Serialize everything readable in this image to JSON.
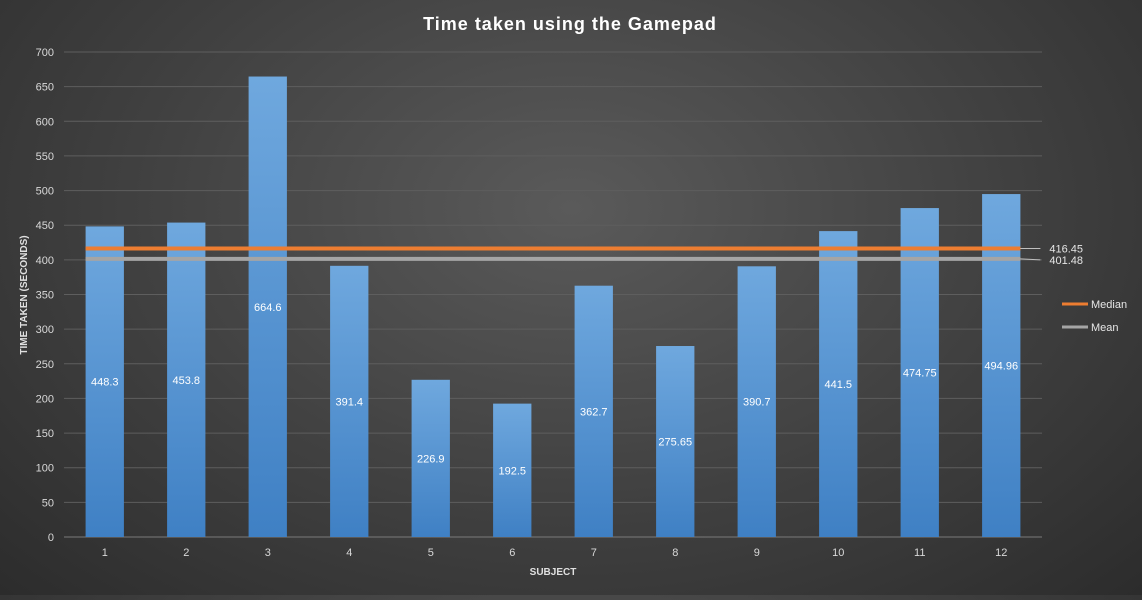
{
  "chart_data": {
    "type": "bar",
    "title": "Time taken using the Gamepad",
    "xlabel": "SUBJECT",
    "ylabel": "TIME TAKEN (SECONDS)",
    "categories": [
      "1",
      "2",
      "3",
      "4",
      "5",
      "6",
      "7",
      "8",
      "9",
      "10",
      "11",
      "12"
    ],
    "series": [
      {
        "values": [
          448.3,
          453.8,
          664.6,
          391.4,
          226.9,
          192.5,
          362.7,
          275.65,
          390.7,
          441.5,
          474.75,
          494.96
        ],
        "labels": [
          "448.3",
          "453.8",
          "664.6",
          "391.4",
          "226.9",
          "192.5",
          "362.7",
          "275.65",
          "390.7",
          "441.5",
          "474.75",
          "494.96"
        ],
        "color": "#5b9bd5"
      }
    ],
    "reference_lines": [
      {
        "name": "Median",
        "value": 416.45,
        "label": "416.45",
        "color": "#ed7d31"
      },
      {
        "name": "Mean",
        "value": 401.48,
        "label": "401.48",
        "color": "#a5a5a5"
      }
    ],
    "ylim": [
      0,
      700
    ],
    "yticks": [
      "0",
      "50",
      "100",
      "150",
      "200",
      "250",
      "300",
      "350",
      "400",
      "450",
      "500",
      "550",
      "600",
      "650",
      "700"
    ],
    "grid": true,
    "legend_position": "right"
  }
}
